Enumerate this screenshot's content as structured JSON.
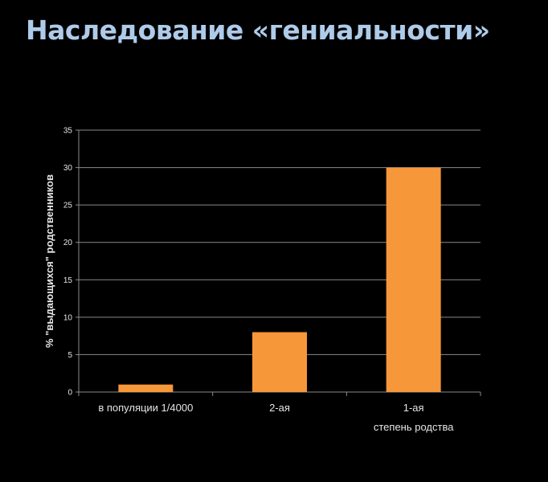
{
  "slide": {
    "title": "Наследование «гениальности»"
  },
  "colors": {
    "background": "#000000",
    "title": "#aecbe9",
    "bar": "#f6973a",
    "grid": "#8a8a8a",
    "text": "#e6e6e6"
  },
  "chart_data": {
    "type": "bar",
    "categories": [
      "в популяции 1/4000",
      "2-ая",
      "1-ая"
    ],
    "values": [
      1,
      8,
      30
    ],
    "xlabel": "степень родства",
    "ylabel": "% \"выдающихся\" родственников",
    "ylim": [
      0,
      35
    ],
    "yticks": [
      0,
      5,
      10,
      15,
      20,
      25,
      30,
      35
    ],
    "grid": true,
    "legend": "none"
  }
}
